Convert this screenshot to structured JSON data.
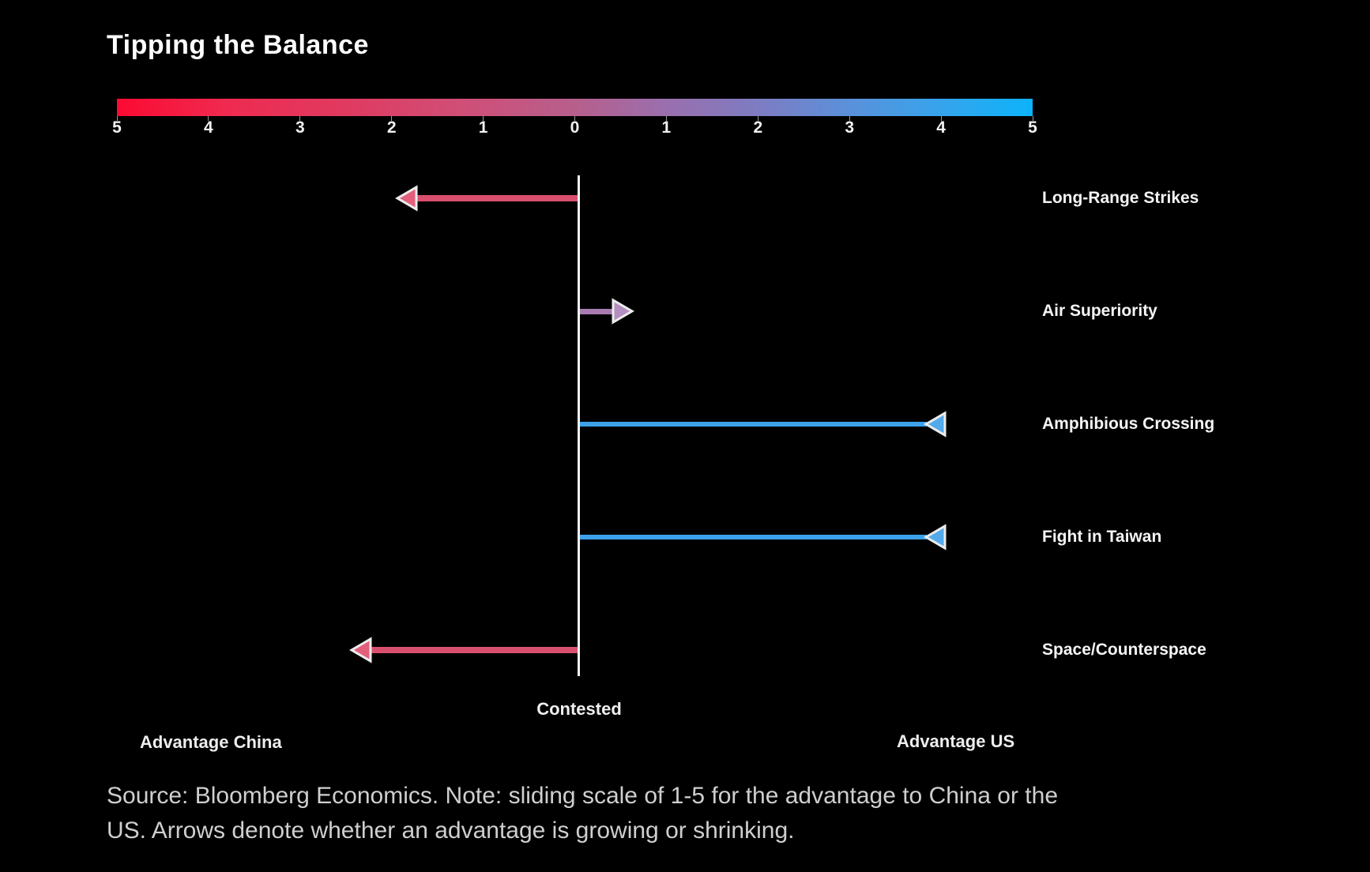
{
  "page": {
    "background_color": "#000000",
    "text_color": "#ffffff"
  },
  "chart_data": {
    "type": "diverging-arrow-bar",
    "title": "Tipping the Balance",
    "center_label": "Contested",
    "left_label": "Advantage China",
    "right_label": "Advantage US",
    "scale_ticks": [
      "5",
      "4",
      "3",
      "2",
      "1",
      "0",
      "1",
      "2",
      "3",
      "4",
      "5"
    ],
    "axis_range": [
      -5,
      5
    ],
    "legend_position": "top",
    "grid": false,
    "gradient_stops": [
      "#fb0a32 0%",
      "#ef2a50 12%",
      "#e03a60 25%",
      "#cf4f78 38%",
      "#b75f8c 50%",
      "#9a6fae 60%",
      "#7e7cc2 70%",
      "#5a91da 80%",
      "#36a4ec 90%",
      "#0cb3fa 100%"
    ],
    "axis_line_color": "#f4f4f4",
    "series": [
      {
        "label": "Long-Range Strikes",
        "side": "china",
        "value": 2.0,
        "trend": "growing",
        "color": "#d94f6e",
        "head_color": "#e2607c"
      },
      {
        "label": "Air Superiority",
        "side": "us",
        "value": 0.6,
        "trend": "growing",
        "color": "#a87cb0",
        "head_color": "#b58fc1"
      },
      {
        "label": "Amphibious Crossing",
        "side": "us",
        "value": 4.0,
        "trend": "shrinking",
        "color": "#3da1ea",
        "head_color": "#52aaec"
      },
      {
        "label": "Fight in Taiwan",
        "side": "us",
        "value": 4.0,
        "trend": "shrinking",
        "color": "#3da1ea",
        "head_color": "#52aaec"
      },
      {
        "label": "Space/Counterspace",
        "side": "china",
        "value": 2.5,
        "trend": "growing",
        "color": "#d94f6e",
        "head_color": "#e2607c"
      }
    ]
  },
  "footer": {
    "source_line1": "Source: Bloomberg Economics. Note: sliding scale of 1-5 for the advantage to China or the",
    "source_line2": "US. Arrows denote whether an advantage is growing or shrinking."
  }
}
